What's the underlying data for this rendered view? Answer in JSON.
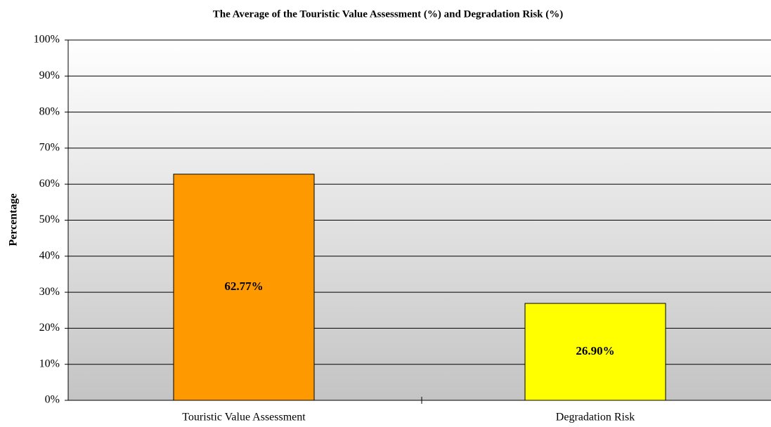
{
  "chart_data": {
    "type": "bar",
    "title": "The Average of the Touristic Value Assessment (%) and Degradation Risk (%)",
    "y_label": "Percentage",
    "categories": [
      "Touristic Value Assessment",
      "Degradation Risk"
    ],
    "values": [
      62.77,
      26.9
    ],
    "value_labels": [
      "62.77%",
      "26.90%"
    ],
    "colors": [
      "#ff9900",
      "#ffff00"
    ],
    "ylim": [
      0,
      100
    ],
    "yticks": [
      {
        "value": 0,
        "label": "0%"
      },
      {
        "value": 10,
        "label": "10%"
      },
      {
        "value": 20,
        "label": "20%"
      },
      {
        "value": 30,
        "label": "30%"
      },
      {
        "value": 40,
        "label": "40%"
      },
      {
        "value": 50,
        "label": "50%"
      },
      {
        "value": 60,
        "label": "60%"
      },
      {
        "value": 70,
        "label": "70%"
      },
      {
        "value": 80,
        "label": "80%"
      },
      {
        "value": 90,
        "label": "90%"
      },
      {
        "value": 100,
        "label": "100%"
      }
    ],
    "grid": true
  }
}
